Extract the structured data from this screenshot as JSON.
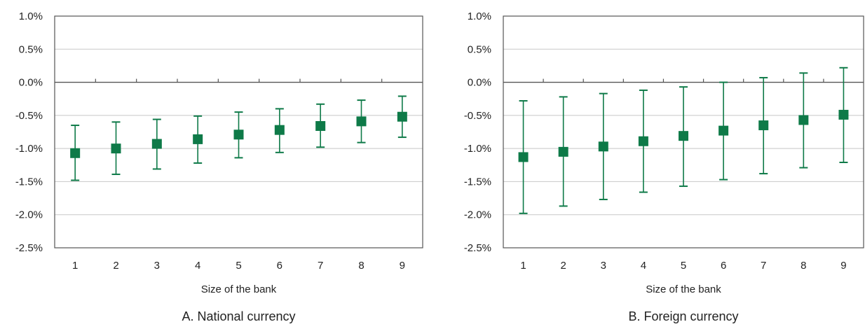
{
  "colors": {
    "marker": "#0e7a48",
    "axis": "#555555",
    "grid": "#c8c8c8",
    "text": "#222222"
  },
  "chart_data": [
    {
      "type": "scatter",
      "title": "A. National currency",
      "xlabel": "Size of the bank",
      "ylabel": "",
      "categories": [
        "1",
        "2",
        "3",
        "4",
        "5",
        "6",
        "7",
        "8",
        "9"
      ],
      "y_tick_labels": [
        "1.0%",
        "0.5%",
        "0.0%",
        "-0.5%",
        "-1.0%",
        "-1.5%",
        "-2.0%",
        "-2.5%"
      ],
      "ylim": [
        -2.5,
        1.0
      ],
      "grid": true,
      "series": [
        {
          "values": [
            -1.07,
            -1.0,
            -0.93,
            -0.86,
            -0.79,
            -0.72,
            -0.66,
            -0.59,
            -0.52
          ],
          "lower": [
            -1.48,
            -1.39,
            -1.31,
            -1.22,
            -1.14,
            -1.06,
            -0.98,
            -0.91,
            -0.83
          ],
          "upper": [
            -0.65,
            -0.6,
            -0.56,
            -0.51,
            -0.45,
            -0.4,
            -0.33,
            -0.27,
            -0.21
          ]
        }
      ]
    },
    {
      "type": "scatter",
      "title": "B. Foreign currency",
      "xlabel": "Size of the bank",
      "ylabel": "",
      "categories": [
        "1",
        "2",
        "3",
        "4",
        "5",
        "6",
        "7",
        "8",
        "9"
      ],
      "y_tick_labels": [
        "1.0%",
        "0.5%",
        "0.0%",
        "-0.5%",
        "-1.0%",
        "-1.5%",
        "-2.0%",
        "-2.5%"
      ],
      "ylim": [
        -2.5,
        1.0
      ],
      "grid": true,
      "series": [
        {
          "values": [
            -1.13,
            -1.05,
            -0.97,
            -0.89,
            -0.81,
            -0.73,
            -0.65,
            -0.57,
            -0.49
          ],
          "lower": [
            -1.98,
            -1.87,
            -1.77,
            -1.66,
            -1.57,
            -1.47,
            -1.38,
            -1.29,
            -1.21
          ],
          "upper": [
            -0.28,
            -0.22,
            -0.17,
            -0.12,
            -0.07,
            0.0,
            0.07,
            0.14,
            0.22
          ]
        }
      ]
    }
  ]
}
